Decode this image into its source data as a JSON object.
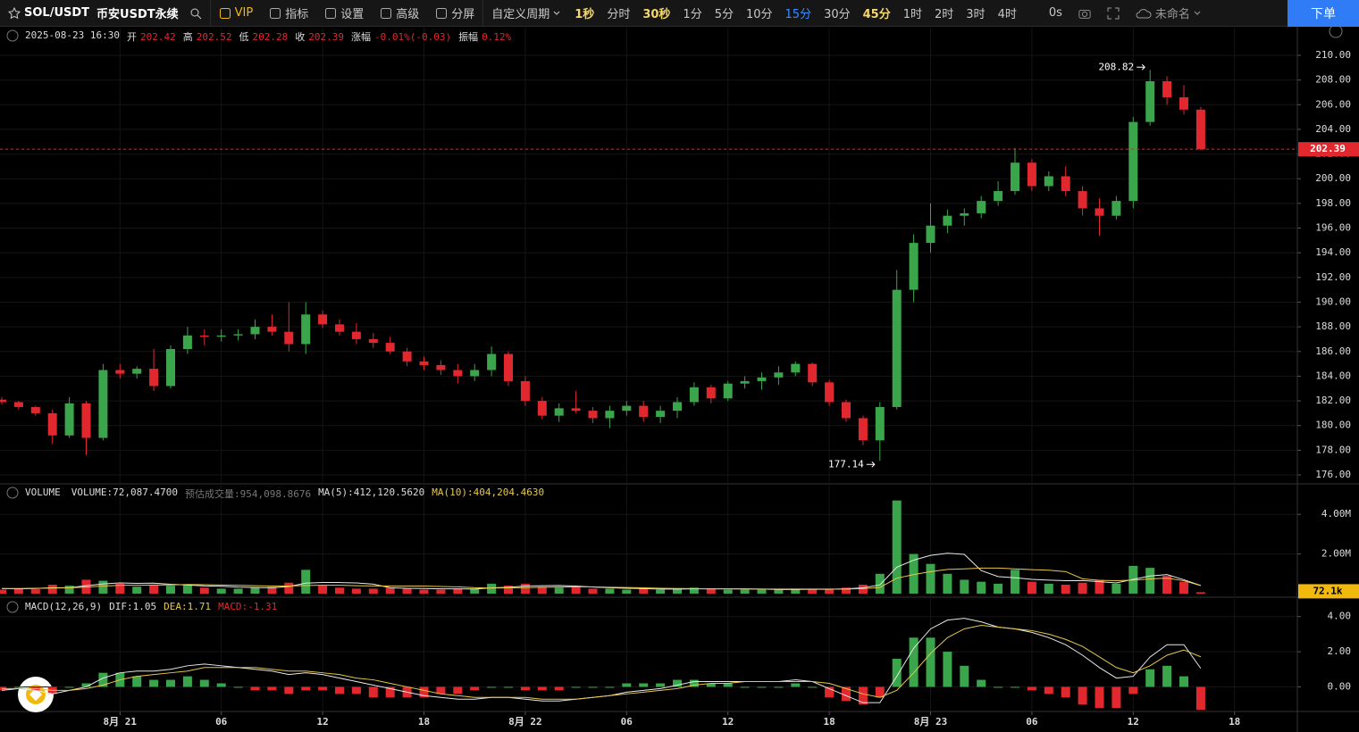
{
  "toolbar": {
    "symbol": "SOL/USDT",
    "exchange": "币安USDT永续",
    "items": [
      "VIP",
      "指标",
      "设置",
      "高级",
      "分屏"
    ],
    "custom_period": "自定义周期",
    "periods": [
      "1秒",
      "分时",
      "30秒",
      "1分",
      "5分",
      "10分",
      "15分",
      "30分",
      "45分",
      "1时",
      "2时",
      "3时",
      "4时"
    ],
    "active_period": "15分",
    "highlighted_periods": [
      "1秒",
      "30秒",
      "45分"
    ],
    "countdown": "0s",
    "layout_name": "未命名",
    "order_button": "下单"
  },
  "info_bar": {
    "datetime": "2025-08-23 16:30",
    "fields": [
      {
        "label": "开",
        "value": "202.42"
      },
      {
        "label": "高",
        "value": "202.52"
      },
      {
        "label": "低",
        "value": "202.28"
      },
      {
        "label": "收",
        "value": "202.39"
      },
      {
        "label": "涨幅",
        "value": "-0.01%(-0.03)"
      },
      {
        "label": "振幅",
        "value": "0.12%"
      }
    ]
  },
  "chart_data": [
    {
      "type": "candlestick",
      "up_color": "#3aa54a",
      "down_color": "#e0282e",
      "xlim": [
        -0.106,
        76.72
      ],
      "ylim": [
        175.35,
        212.24
      ],
      "yticks": [
        {
          "value": 176,
          "label": "176.00"
        },
        {
          "value": 178,
          "label": "178.00"
        },
        {
          "value": 180,
          "label": "180.00"
        },
        {
          "value": 182,
          "label": "182.00"
        },
        {
          "value": 184,
          "label": "184.00"
        },
        {
          "value": 186,
          "label": "186.00"
        },
        {
          "value": 188,
          "label": "188.00"
        },
        {
          "value": 190,
          "label": "190.00"
        },
        {
          "value": 192,
          "label": "192.00"
        },
        {
          "value": 194,
          "label": "194.00"
        },
        {
          "value": 196,
          "label": "196.00"
        },
        {
          "value": 198,
          "label": "198.00"
        },
        {
          "value": 200,
          "label": "200.00"
        },
        {
          "value": 202,
          "label": "202.00"
        },
        {
          "value": 204,
          "label": "204.00"
        },
        {
          "value": 206,
          "label": "206.00"
        },
        {
          "value": 208,
          "label": "208.00"
        },
        {
          "value": 210,
          "label": "210.00"
        }
      ],
      "grid": true,
      "last_price_line": true,
      "high_marker": [
        68,
        1
      ],
      "low_marker": [
        52,
        2
      ],
      "candles": [
        [
          182.1,
          182.3,
          181.7,
          181.9
        ],
        [
          181.9,
          182.0,
          181.3,
          181.5
        ],
        [
          181.5,
          181.6,
          180.8,
          181.0
        ],
        [
          181.0,
          181.3,
          178.5,
          179.2
        ],
        [
          179.2,
          182.3,
          179.0,
          181.8
        ],
        [
          181.8,
          182.0,
          177.6,
          179.0
        ],
        [
          179.0,
          185.0,
          178.8,
          184.5
        ],
        [
          184.5,
          185.0,
          183.8,
          184.2
        ],
        [
          184.2,
          184.8,
          183.8,
          184.6
        ],
        [
          184.6,
          186.2,
          182.8,
          183.2
        ],
        [
          183.2,
          186.5,
          183.0,
          186.2
        ],
        [
          186.2,
          188.0,
          185.8,
          187.3
        ],
        [
          187.3,
          187.8,
          186.5,
          187.2
        ],
        [
          187.2,
          187.8,
          186.8,
          187.3
        ],
        [
          187.3,
          187.8,
          186.9,
          187.4
        ],
        [
          187.4,
          188.6,
          187.0,
          188.0
        ],
        [
          188.0,
          189.0,
          187.3,
          187.6
        ],
        [
          187.6,
          190.0,
          186.0,
          186.6
        ],
        [
          186.6,
          190.0,
          185.8,
          189.0
        ],
        [
          189.0,
          189.3,
          187.9,
          188.2
        ],
        [
          188.2,
          188.6,
          187.3,
          187.6
        ],
        [
          187.6,
          188.3,
          186.6,
          187.0
        ],
        [
          187.0,
          187.5,
          186.3,
          186.7
        ],
        [
          186.7,
          187.2,
          185.8,
          186.0
        ],
        [
          186.0,
          186.3,
          184.8,
          185.2
        ],
        [
          185.2,
          185.6,
          184.5,
          184.9
        ],
        [
          184.9,
          185.3,
          184.1,
          184.5
        ],
        [
          184.5,
          185.0,
          183.4,
          184.0
        ],
        [
          184.0,
          185.0,
          183.6,
          184.5
        ],
        [
          184.5,
          186.4,
          184.0,
          185.8
        ],
        [
          185.8,
          186.0,
          183.2,
          183.6
        ],
        [
          183.6,
          184.0,
          181.6,
          182.0
        ],
        [
          182.0,
          182.3,
          180.5,
          180.8
        ],
        [
          180.8,
          181.8,
          180.3,
          181.4
        ],
        [
          181.4,
          182.8,
          181.0,
          181.2
        ],
        [
          181.2,
          181.5,
          180.2,
          180.6
        ],
        [
          180.6,
          181.6,
          179.8,
          181.2
        ],
        [
          181.2,
          182.0,
          180.8,
          181.6
        ],
        [
          181.6,
          182.0,
          180.3,
          180.7
        ],
        [
          180.7,
          181.6,
          180.2,
          181.2
        ],
        [
          181.2,
          182.3,
          180.6,
          181.9
        ],
        [
          181.9,
          183.5,
          181.6,
          183.1
        ],
        [
          183.1,
          183.3,
          181.8,
          182.2
        ],
        [
          182.2,
          183.6,
          182.0,
          183.4
        ],
        [
          183.4,
          184.0,
          183.0,
          183.6
        ],
        [
          183.6,
          184.3,
          182.9,
          183.9
        ],
        [
          183.9,
          184.8,
          183.3,
          184.3
        ],
        [
          184.3,
          185.2,
          184.0,
          185.0
        ],
        [
          185.0,
          185.1,
          183.2,
          183.5
        ],
        [
          183.5,
          183.7,
          181.6,
          181.9
        ],
        [
          181.9,
          182.1,
          180.3,
          180.6
        ],
        [
          180.6,
          180.8,
          178.4,
          178.8
        ],
        [
          178.8,
          181.9,
          177.14,
          181.5
        ],
        [
          181.5,
          192.6,
          181.3,
          191.0
        ],
        [
          191.0,
          195.5,
          190.0,
          194.8
        ],
        [
          194.8,
          198.0,
          194.0,
          196.2
        ],
        [
          196.2,
          197.5,
          195.6,
          197.0
        ],
        [
          197.0,
          197.6,
          196.2,
          197.2
        ],
        [
          197.2,
          198.6,
          196.8,
          198.2
        ],
        [
          198.2,
          199.8,
          197.8,
          199.0
        ],
        [
          199.0,
          202.5,
          198.7,
          201.3
        ],
        [
          201.3,
          201.6,
          199.0,
          199.4
        ],
        [
          199.4,
          200.6,
          199.0,
          200.2
        ],
        [
          200.2,
          201.0,
          198.6,
          199.0
        ],
        [
          199.0,
          199.4,
          197.0,
          197.6
        ],
        [
          197.6,
          198.4,
          195.4,
          197.0
        ],
        [
          197.0,
          198.6,
          196.7,
          198.2
        ],
        [
          198.2,
          205.0,
          197.6,
          204.6
        ],
        [
          204.6,
          208.82,
          204.3,
          207.9
        ],
        [
          207.9,
          208.3,
          206.0,
          206.6
        ],
        [
          206.6,
          207.6,
          205.2,
          205.6
        ],
        [
          205.6,
          205.8,
          202.3,
          202.39
        ]
      ]
    },
    {
      "type": "volume",
      "xlim": [
        -0.106,
        76.72
      ],
      "ylim": [
        -136000,
        5450000
      ],
      "yticks": [
        {
          "value": 2000000,
          "label": "2.00M"
        },
        {
          "value": 4000000,
          "label": "4.00M"
        }
      ],
      "legend": [
        "VOLUME",
        "VOLUME:72,087.4700",
        "预估成交量:954,098.8676",
        "MA(5):412,120.5620",
        "MA(10):404,204.4630"
      ],
      "last_label": "72.1k",
      "last_label_color": "#f0b90b",
      "values": [
        200000,
        250000,
        220000,
        450000,
        400000,
        700000,
        650000,
        500000,
        350000,
        450000,
        400000,
        450000,
        300000,
        250000,
        250000,
        300000,
        350000,
        550000,
        1200000,
        400000,
        300000,
        250000,
        250000,
        300000,
        250000,
        200000,
        200000,
        250000,
        250000,
        500000,
        400000,
        500000,
        350000,
        300000,
        350000,
        250000,
        250000,
        200000,
        250000,
        200000,
        250000,
        300000,
        250000,
        200000,
        200000,
        200000,
        200000,
        250000,
        250000,
        200000,
        300000,
        450000,
        1000000,
        4700000,
        2000000,
        1500000,
        1000000,
        700000,
        600000,
        500000,
        1200000,
        600000,
        500000,
        450000,
        550000,
        700000,
        500000,
        1400000,
        1300000,
        900000,
        600000,
        72087.47
      ],
      "lines": [
        {
          "color": "#e8e8e8",
          "values": [
            250000,
            240000,
            260000,
            300000,
            300000,
            400000,
            490000,
            540000,
            520000,
            530000,
            470000,
            430000,
            390000,
            370000,
            330000,
            310000,
            290000,
            360000,
            530000,
            560000,
            560000,
            540000,
            480000,
            300000,
            270000,
            260000,
            240000,
            240000,
            230000,
            290000,
            320000,
            380000,
            400000,
            410000,
            380000,
            330000,
            300000,
            270000,
            250000,
            230000,
            230000,
            240000,
            240000,
            240000,
            240000,
            230000,
            210000,
            210000,
            220000,
            220000,
            240000,
            290000,
            440000,
            1330000,
            1690000,
            1930000,
            2040000,
            1980000,
            1160000,
            860000,
            800000,
            720000,
            680000,
            650000,
            660000,
            600000,
            540000,
            720000,
            890000,
            960000,
            700000,
            412120.562
          ]
        },
        {
          "color": "#e6c84b",
          "values": [
            260000,
            260000,
            270000,
            280000,
            290000,
            330000,
            380000,
            420000,
            420000,
            430000,
            440000,
            460000,
            450000,
            430000,
            420000,
            400000,
            380000,
            380000,
            410000,
            420000,
            420000,
            400000,
            390000,
            380000,
            380000,
            380000,
            360000,
            340000,
            300000,
            280000,
            290000,
            300000,
            320000,
            330000,
            340000,
            340000,
            320000,
            310000,
            290000,
            270000,
            260000,
            250000,
            240000,
            240000,
            230000,
            230000,
            230000,
            230000,
            230000,
            230000,
            230000,
            250000,
            310000,
            780000,
            960000,
            1110000,
            1220000,
            1250000,
            1290000,
            1290000,
            1250000,
            1210000,
            1180000,
            1110000,
            750000,
            670000,
            650000,
            680000,
            740000,
            780000,
            650000,
            404204.463
          ]
        }
      ]
    },
    {
      "type": "macd",
      "xlim": [
        -0.106,
        76.72
      ],
      "ylim": [
        -1.4,
        5.0
      ],
      "yticks": [
        {
          "value": 0,
          "label": "0.00"
        },
        {
          "value": 2,
          "label": "2.00"
        },
        {
          "value": 4,
          "label": "4.00"
        }
      ],
      "xticks": [
        {
          "value": 7,
          "label": "8月 21"
        },
        {
          "value": 13,
          "label": "06"
        },
        {
          "value": 19,
          "label": "12"
        },
        {
          "value": 25,
          "label": "18"
        },
        {
          "value": 31,
          "label": "8月 22"
        },
        {
          "value": 37,
          "label": "06"
        },
        {
          "value": 43,
          "label": "12"
        },
        {
          "value": 49,
          "label": "18"
        },
        {
          "value": 55,
          "label": "8月 23"
        },
        {
          "value": 61,
          "label": "06"
        },
        {
          "value": 67,
          "label": "12"
        },
        {
          "value": 73,
          "label": "18"
        }
      ],
      "legend": [
        "MACD(12,26,9)",
        "DIF:1.05",
        "DEA:1.71",
        "MACD:-1.31"
      ],
      "dif_color": "#e8e8e8",
      "dea_color": "#e6c84b",
      "histogram": [
        -0.2,
        0,
        -0.2,
        -0.4,
        0,
        0.2,
        0.8,
        0.8,
        0.6,
        0.4,
        0.4,
        0.6,
        0.4,
        0.2,
        0,
        -0.2,
        -0.2,
        -0.4,
        -0.2,
        -0.2,
        -0.4,
        -0.4,
        -0.6,
        -0.6,
        -0.6,
        -0.6,
        -0.4,
        -0.4,
        -0.2,
        0,
        0,
        -0.2,
        -0.2,
        -0.2,
        0,
        0,
        0,
        0.2,
        0.2,
        0.2,
        0.4,
        0.4,
        0.2,
        0.2,
        0,
        0,
        0,
        0.2,
        0,
        -0.6,
        -0.8,
        -1.0,
        -0.6,
        1.6,
        2.8,
        2.8,
        2.0,
        1.2,
        0.4,
        0,
        0,
        -0.2,
        -0.4,
        -0.6,
        -1.0,
        -1.2,
        -1.2,
        -0.4,
        1.0,
        1.2,
        0.6,
        -1.31
      ],
      "dif": [
        -0.2,
        -0.1,
        -0.2,
        -0.4,
        -0.2,
        0.0,
        0.5,
        0.8,
        0.9,
        0.9,
        1.0,
        1.2,
        1.3,
        1.2,
        1.1,
        1.0,
        0.9,
        0.7,
        0.8,
        0.7,
        0.5,
        0.3,
        0.1,
        -0.1,
        -0.3,
        -0.5,
        -0.6,
        -0.7,
        -0.7,
        -0.6,
        -0.6,
        -0.7,
        -0.8,
        -0.8,
        -0.7,
        -0.6,
        -0.5,
        -0.3,
        -0.2,
        -0.1,
        0.1,
        0.3,
        0.3,
        0.3,
        0.3,
        0.3,
        0.3,
        0.4,
        0.3,
        -0.1,
        -0.5,
        -0.9,
        -0.9,
        0.6,
        2.2,
        3.3,
        3.8,
        3.9,
        3.7,
        3.4,
        3.3,
        3.1,
        2.8,
        2.4,
        1.8,
        1.1,
        0.5,
        0.6,
        1.7,
        2.4,
        2.4,
        1.05
      ],
      "dea": [
        -0.1,
        -0.1,
        -0.1,
        -0.2,
        -0.2,
        -0.1,
        0.1,
        0.4,
        0.6,
        0.7,
        0.8,
        0.9,
        1.1,
        1.1,
        1.1,
        1.1,
        1.0,
        0.9,
        0.9,
        0.8,
        0.7,
        0.5,
        0.4,
        0.2,
        0.0,
        -0.2,
        -0.4,
        -0.5,
        -0.6,
        -0.6,
        -0.6,
        -0.6,
        -0.7,
        -0.7,
        -0.7,
        -0.6,
        -0.5,
        -0.4,
        -0.3,
        -0.2,
        -0.1,
        0.1,
        0.2,
        0.2,
        0.3,
        0.3,
        0.3,
        0.3,
        0.3,
        0.2,
        -0.1,
        -0.4,
        -0.6,
        -0.2,
        0.8,
        1.9,
        2.8,
        3.3,
        3.5,
        3.4,
        3.3,
        3.2,
        3.0,
        2.7,
        2.3,
        1.7,
        1.1,
        0.8,
        1.2,
        1.8,
        2.1,
        1.71
      ]
    }
  ]
}
